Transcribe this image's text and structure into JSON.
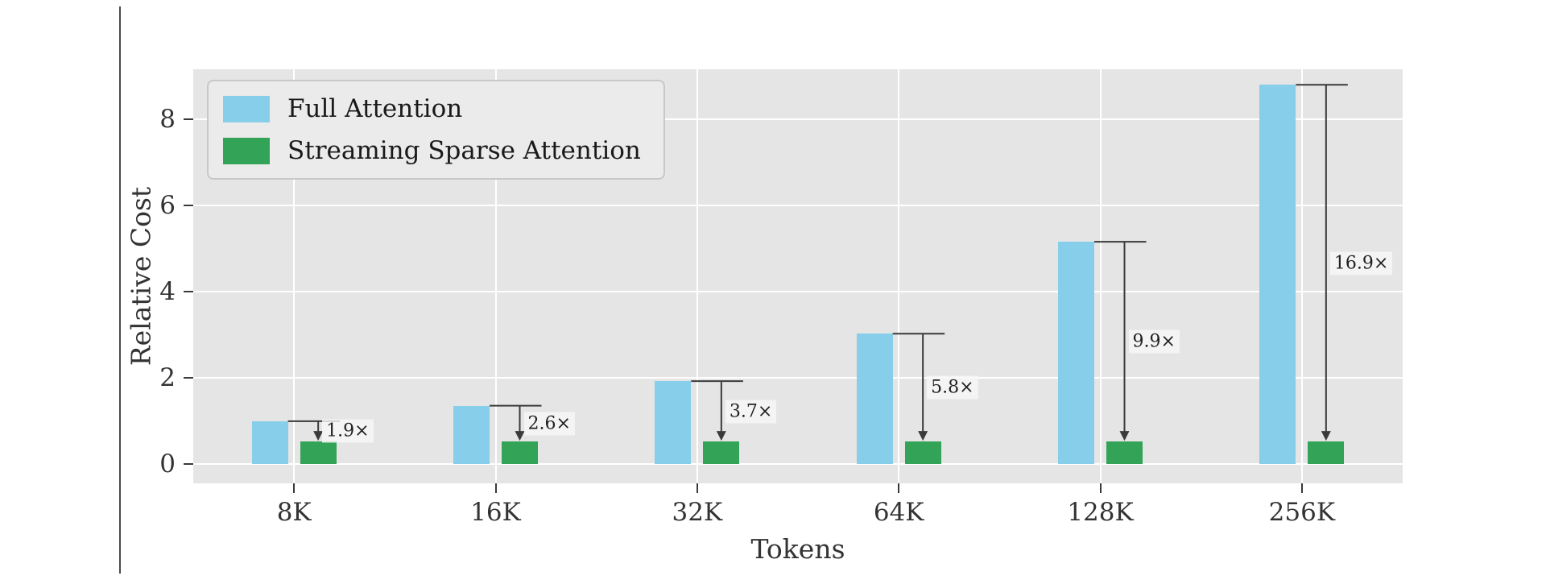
{
  "chart_data": {
    "type": "bar",
    "title": "",
    "xlabel": "Tokens",
    "ylabel": "Relative Cost",
    "categories": [
      "8K",
      "16K",
      "32K",
      "64K",
      "128K",
      "256K"
    ],
    "series": [
      {
        "name": "Full Attention",
        "color": "#87CEEB",
        "values": [
          0.99,
          1.35,
          1.92,
          3.02,
          5.15,
          8.79
        ]
      },
      {
        "name": "Streaming Sparse Attention",
        "color": "#33A357",
        "values": [
          0.52,
          0.52,
          0.52,
          0.52,
          0.52,
          0.52
        ]
      }
    ],
    "annotations": [
      "1.9×",
      "2.6×",
      "3.7×",
      "5.8×",
      "9.9×",
      "16.9×"
    ],
    "yticks": [
      0,
      2,
      4,
      6,
      8
    ],
    "ylim": [
      -0.45,
      9.15
    ],
    "legend_position": "upper left",
    "grid": true,
    "plot_bg": "#e5e5e5",
    "grid_color": "#ffffff",
    "arrow_color": "#3a3a3a",
    "tick_color": "#333333"
  }
}
